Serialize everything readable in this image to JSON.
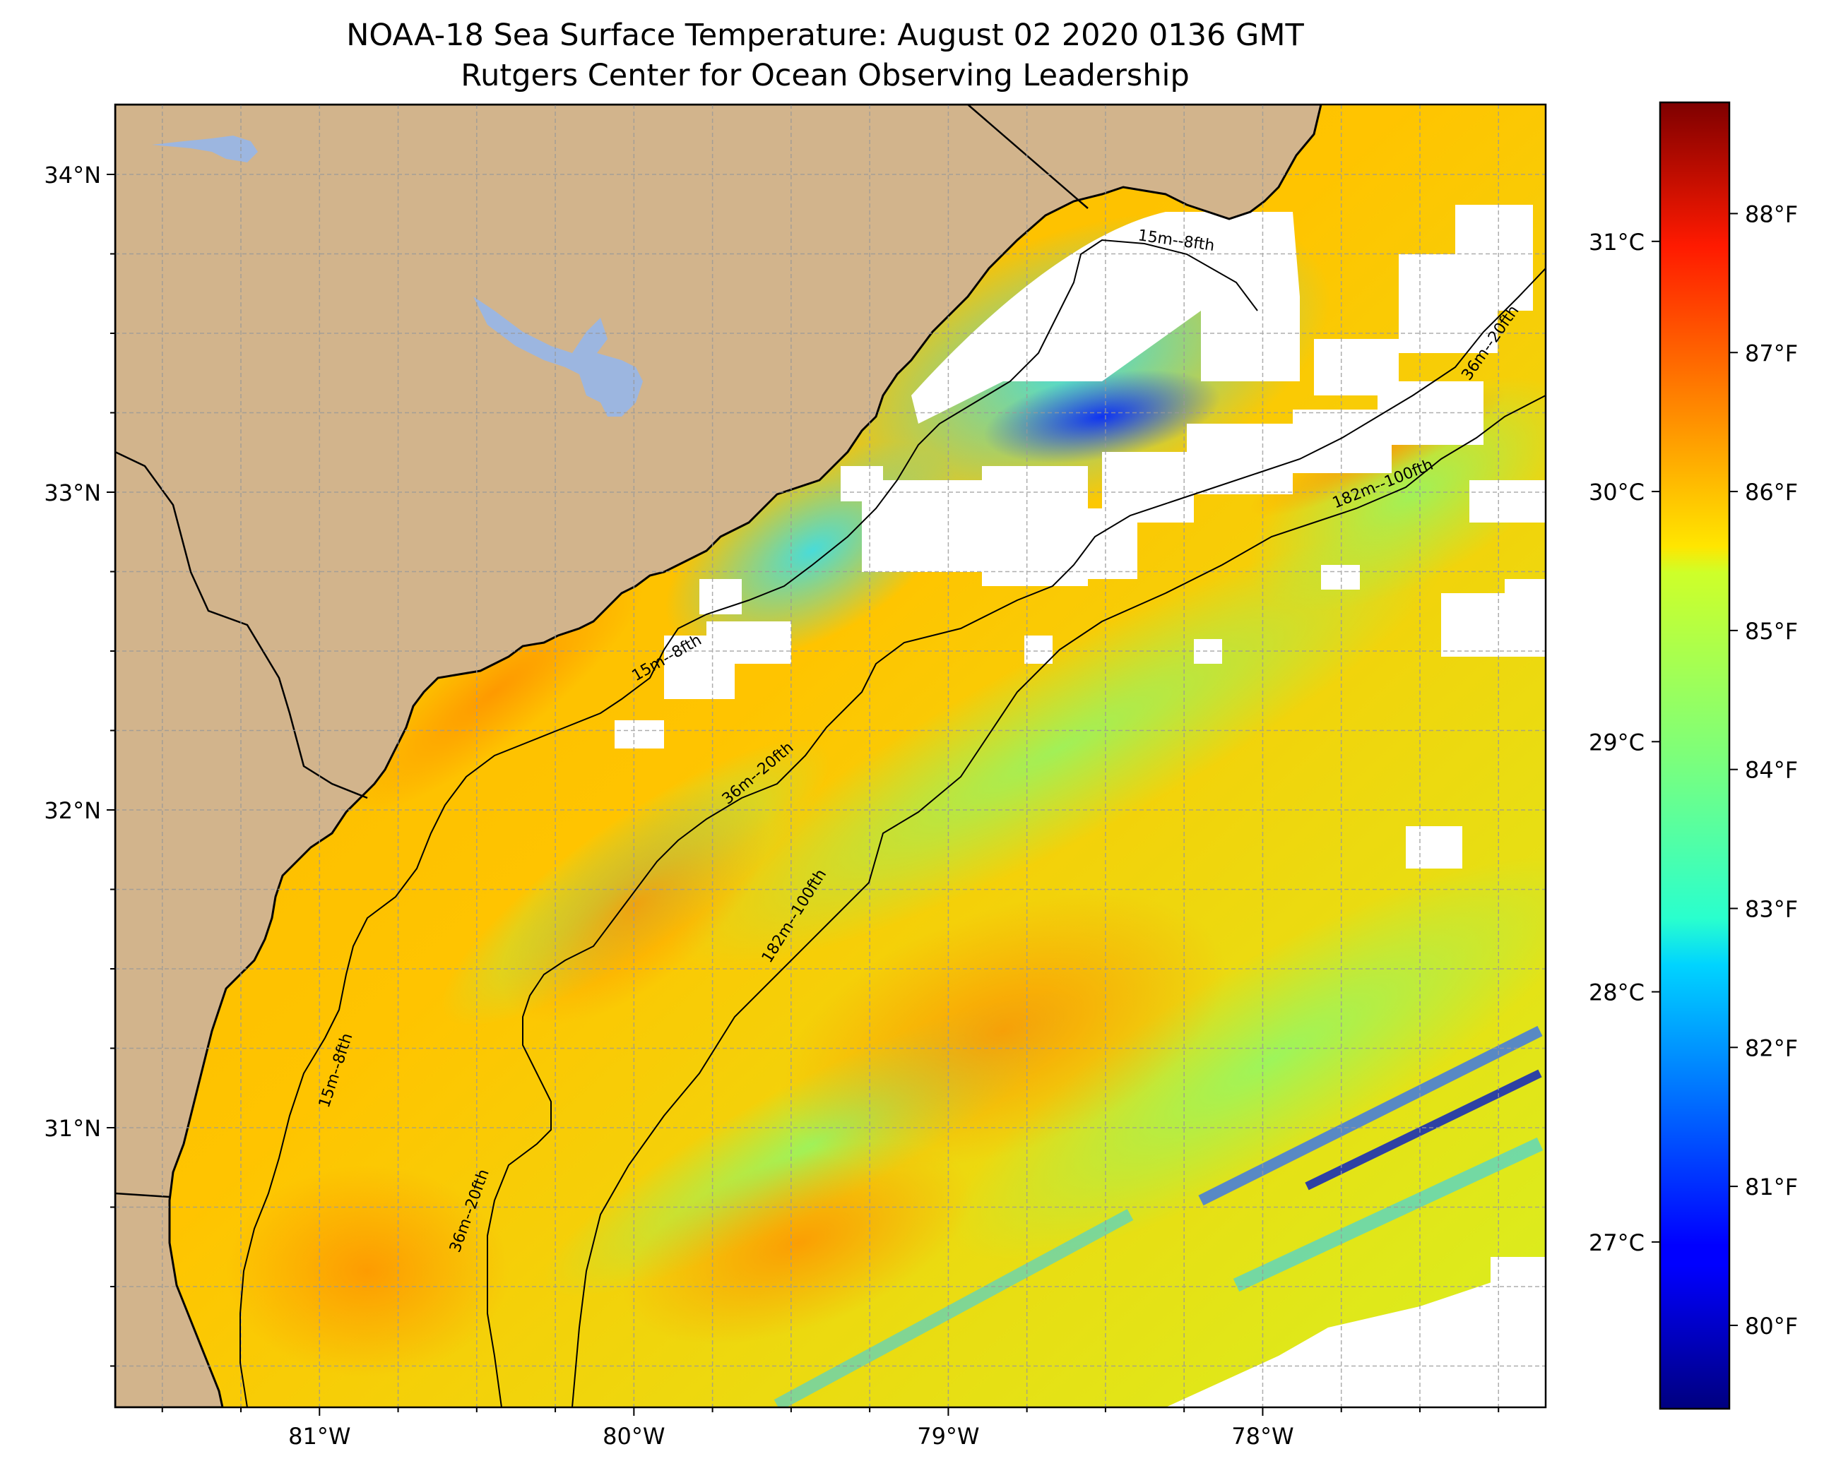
{
  "title": {
    "line1": "NOAA-18 Sea Surface Temperature: August 02 2020 0136 GMT",
    "line2": "Rutgers Center for Ocean Observing Leadership"
  },
  "map": {
    "lon_range": [
      -81.65,
      -77.1
    ],
    "lat_range": [
      30.12,
      34.22
    ],
    "projection": "equirectangular",
    "land_color": "#d2b48c",
    "lake_color": "#9cb6e0",
    "cloud_mask_color": "#ffffff",
    "gridlines": "dashed, 0.25 degree spacing",
    "lat_ticks": [
      {
        "value": 34,
        "label": "34°N"
      },
      {
        "value": 33,
        "label": "33°N"
      },
      {
        "value": 32,
        "label": "32°N"
      },
      {
        "value": 31,
        "label": "31°N"
      }
    ],
    "lon_ticks": [
      {
        "value": -81,
        "label": "81°W"
      },
      {
        "value": -80,
        "label": "80°W"
      },
      {
        "value": -79,
        "label": "79°W"
      },
      {
        "value": -78,
        "label": "78°W"
      }
    ],
    "isobaths": [
      {
        "label": "15m--8fth",
        "depth_m": 15
      },
      {
        "label": "36m--20fth",
        "depth_m": 36
      },
      {
        "label": "182m--100fth",
        "depth_m": 182
      }
    ]
  },
  "colorbar": {
    "colormap": "jet",
    "min_f": 79.4,
    "max_f": 88.8,
    "fahrenheit_ticks": [
      {
        "value": 80,
        "label": "80°F"
      },
      {
        "value": 81,
        "label": "81°F"
      },
      {
        "value": 82,
        "label": "82°F"
      },
      {
        "value": 83,
        "label": "83°F"
      },
      {
        "value": 84,
        "label": "84°F"
      },
      {
        "value": 85,
        "label": "85°F"
      },
      {
        "value": 86,
        "label": "86°F"
      },
      {
        "value": 87,
        "label": "87°F"
      },
      {
        "value": 88,
        "label": "88°F"
      }
    ],
    "celsius_ticks": [
      {
        "value": 27,
        "label": "27°C"
      },
      {
        "value": 28,
        "label": "28°C"
      },
      {
        "value": 29,
        "label": "29°C"
      },
      {
        "value": 30,
        "label": "30°C"
      },
      {
        "value": 31,
        "label": "31°C"
      }
    ]
  }
}
